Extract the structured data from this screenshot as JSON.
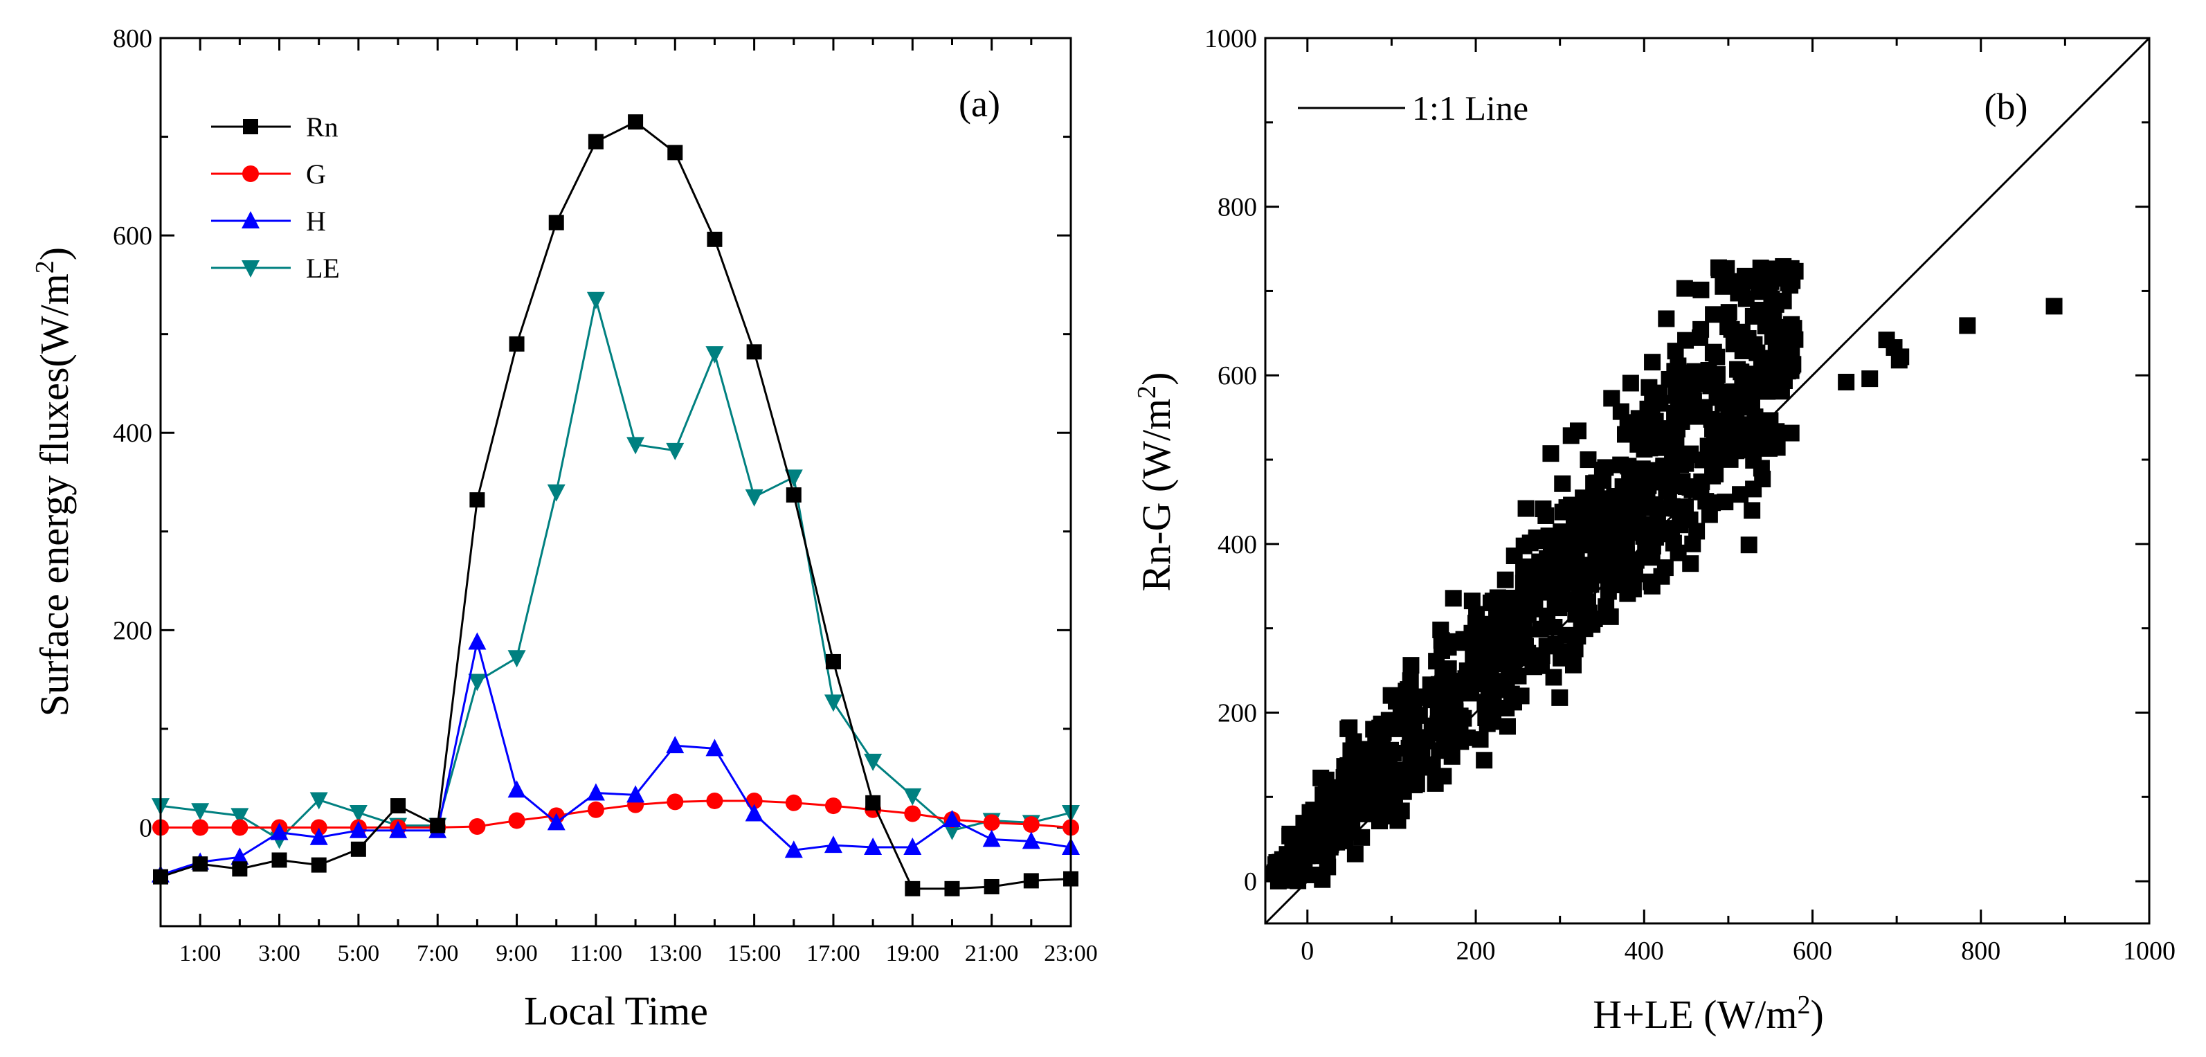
{
  "colors": {
    "Rn": "#000000",
    "G": "#ff0000",
    "H": "#0000ff",
    "LE": "#008080",
    "axis": "#000000",
    "points": "#000000"
  },
  "chart_data": [
    {
      "type": "line",
      "panel_label": "(a)",
      "title": "",
      "xlabel": "Local Time",
      "ylabel": "Surface energy fluxes(W/m²)",
      "xlim": [
        0,
        23
      ],
      "ylim": [
        -100,
        800
      ],
      "yticks": [
        0,
        200,
        400,
        600,
        800
      ],
      "x": [
        0,
        1,
        2,
        3,
        4,
        5,
        6,
        7,
        8,
        9,
        10,
        11,
        12,
        13,
        14,
        15,
        16,
        17,
        18,
        19,
        20,
        21,
        22,
        23
      ],
      "xtick_labels": [
        {
          "x": 1,
          "label": "1:00"
        },
        {
          "x": 3,
          "label": "3:00"
        },
        {
          "x": 5,
          "label": "5:00"
        },
        {
          "x": 7,
          "label": "7:00"
        },
        {
          "x": 9,
          "label": "9:00"
        },
        {
          "x": 11,
          "label": "11:00"
        },
        {
          "x": 13,
          "label": "13:00"
        },
        {
          "x": 15,
          "label": "15:00"
        },
        {
          "x": 17,
          "label": "17:00"
        },
        {
          "x": 19,
          "label": "19:00"
        },
        {
          "x": 21,
          "label": "21:00"
        },
        {
          "x": 23,
          "label": "23:00"
        }
      ],
      "legend_position": "top-left",
      "series": [
        {
          "name": "Rn",
          "marker": "square",
          "values": [
            -50,
            -37,
            -42,
            -33,
            -38,
            -22,
            22,
            2,
            332,
            490,
            613,
            695,
            715,
            684,
            596,
            482,
            337,
            168,
            25,
            -62,
            -62,
            -60,
            -54,
            -52
          ]
        },
        {
          "name": "G",
          "marker": "circle",
          "values": [
            0,
            0,
            0,
            0,
            0,
            0,
            0,
            0,
            1,
            7,
            12,
            18,
            23,
            26,
            27,
            27,
            25,
            22,
            18,
            14,
            8,
            5,
            3,
            0
          ]
        },
        {
          "name": "H",
          "marker": "triangle-up",
          "values": [
            -48,
            -35,
            -30,
            -5,
            -10,
            -3,
            -3,
            -3,
            188,
            38,
            5,
            35,
            33,
            83,
            80,
            14,
            -23,
            -18,
            -20,
            -20,
            8,
            -12,
            -14,
            -20
          ]
        },
        {
          "name": "LE",
          "marker": "triangle-down",
          "values": [
            22,
            17,
            12,
            -12,
            28,
            15,
            2,
            2,
            148,
            172,
            340,
            535,
            388,
            382,
            480,
            335,
            355,
            127,
            67,
            32,
            -3,
            7,
            5,
            15
          ]
        }
      ]
    },
    {
      "type": "scatter",
      "panel_label": "(b)",
      "title": "",
      "xlabel": "H+LE (W/m²)",
      "ylabel": "Rn-G (W/m²)",
      "xlim": [
        -50,
        1000
      ],
      "ylim": [
        -50,
        1000
      ],
      "xticks": [
        0,
        200,
        400,
        600,
        800,
        1000
      ],
      "yticks": [
        0,
        200,
        400,
        600,
        800,
        1000
      ],
      "legend_position": "top-left",
      "reference_line": {
        "label": "1:1 Line",
        "slope": 1,
        "intercept": 0
      },
      "point_count": 900,
      "points_description": "dense cloud of points above the 1:1 line, H+LE from about -40 to 580 W/m² and Rn-G from about 0 to 730 W/m²",
      "outliers": [
        [
          640,
          592
        ],
        [
          668,
          596
        ],
        [
          688,
          642
        ],
        [
          703,
          618
        ],
        [
          697,
          633
        ],
        [
          705,
          622
        ],
        [
          784,
          659
        ],
        [
          887,
          682
        ]
      ]
    }
  ]
}
